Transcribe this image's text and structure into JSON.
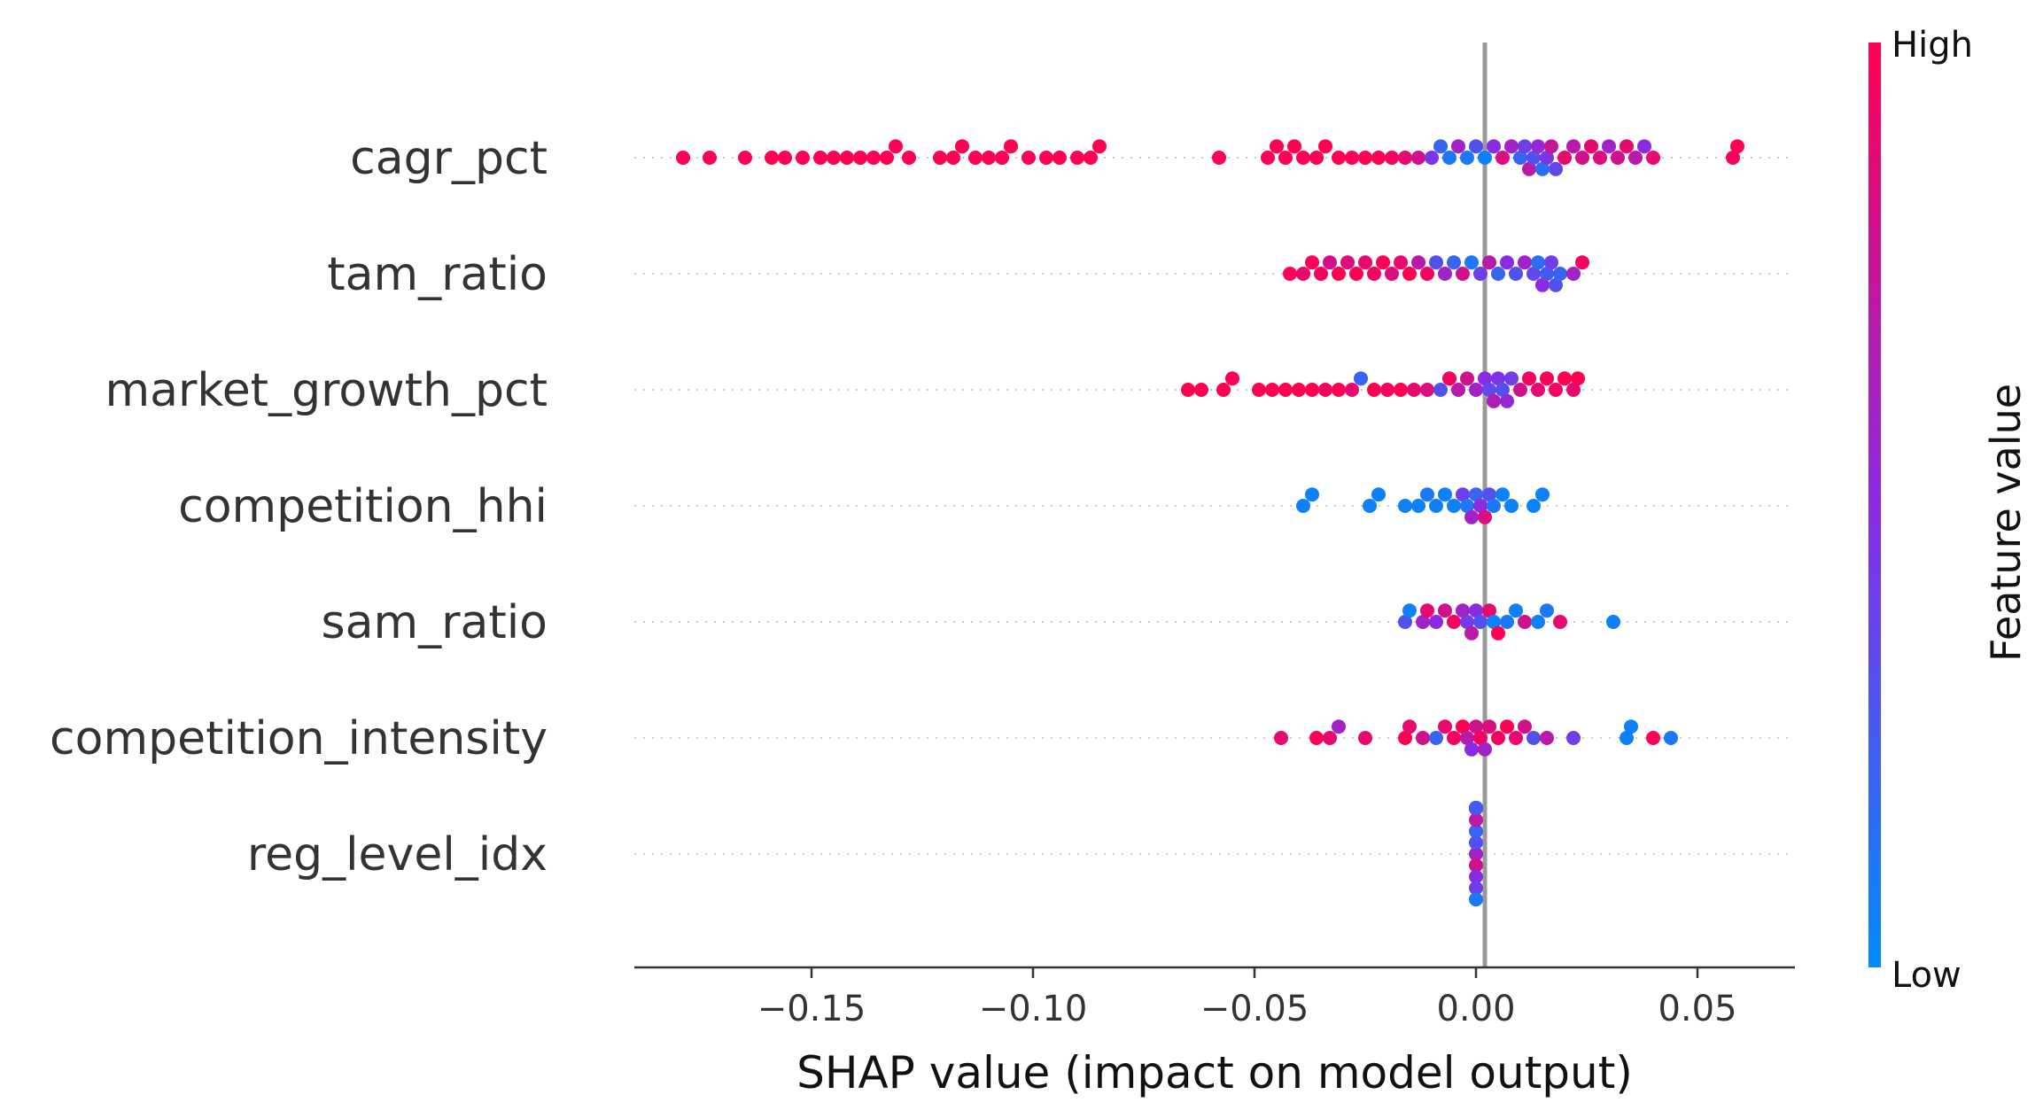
{
  "chart_data": {
    "type": "scatter",
    "subtype": "shap-beeswarm",
    "title": "",
    "xlabel": "SHAP value (impact on model output)",
    "ylabel": "",
    "xlim": [
      -0.19,
      0.072
    ],
    "xticks": [
      -0.15,
      -0.1,
      -0.05,
      0.0,
      0.05
    ],
    "xtick_labels": [
      "−0.15",
      "−0.10",
      "−0.05",
      "0.00",
      "0.05"
    ],
    "zero_line": true,
    "grid": false,
    "colorbar": {
      "title": "Feature value",
      "high_label": "High",
      "low_label": "Low",
      "high_color": "#ff0052",
      "mid_color": "#8a2be2",
      "low_color": "#008bfb"
    },
    "features": [
      {
        "name": "cagr_pct",
        "points": [
          [
            -0.179,
            1.0
          ],
          [
            -0.173,
            1.0
          ],
          [
            -0.165,
            1.0
          ],
          [
            -0.159,
            1.0
          ],
          [
            -0.156,
            1.0
          ],
          [
            -0.152,
            1.0
          ],
          [
            -0.148,
            1.0
          ],
          [
            -0.145,
            1.0
          ],
          [
            -0.142,
            1.0
          ],
          [
            -0.139,
            1.0
          ],
          [
            -0.136,
            1.0
          ],
          [
            -0.133,
            1.0
          ],
          [
            -0.131,
            1.0
          ],
          [
            -0.128,
            1.0
          ],
          [
            -0.121,
            1.0
          ],
          [
            -0.118,
            1.0
          ],
          [
            -0.116,
            1.0
          ],
          [
            -0.113,
            1.0
          ],
          [
            -0.11,
            1.0
          ],
          [
            -0.107,
            1.0
          ],
          [
            -0.105,
            1.0
          ],
          [
            -0.101,
            1.0
          ],
          [
            -0.097,
            1.0
          ],
          [
            -0.094,
            1.0
          ],
          [
            -0.09,
            1.0
          ],
          [
            -0.087,
            1.0
          ],
          [
            -0.085,
            1.0
          ],
          [
            -0.058,
            1.0
          ],
          [
            -0.047,
            1.0
          ],
          [
            -0.045,
            1.0
          ],
          [
            -0.043,
            1.0
          ],
          [
            -0.041,
            1.0
          ],
          [
            -0.039,
            1.0
          ],
          [
            -0.036,
            1.0
          ],
          [
            -0.034,
            1.0
          ],
          [
            -0.031,
            1.0
          ],
          [
            -0.028,
            1.0
          ],
          [
            -0.025,
            1.0
          ],
          [
            -0.022,
            1.0
          ],
          [
            -0.019,
            0.95
          ],
          [
            -0.016,
            0.9
          ],
          [
            -0.013,
            0.8
          ],
          [
            -0.01,
            0.45
          ],
          [
            -0.008,
            0.2
          ],
          [
            -0.006,
            0.1
          ],
          [
            -0.004,
            0.6
          ],
          [
            -0.002,
            0.1
          ],
          [
            0.0,
            0.3
          ],
          [
            0.002,
            0.05
          ],
          [
            0.004,
            0.5
          ],
          [
            0.006,
            0.85
          ],
          [
            0.008,
            0.6
          ],
          [
            0.01,
            0.2
          ],
          [
            0.011,
            0.4
          ],
          [
            0.012,
            0.7
          ],
          [
            0.013,
            0.3
          ],
          [
            0.014,
            0.55
          ],
          [
            0.015,
            0.15
          ],
          [
            0.016,
            0.45
          ],
          [
            0.017,
            0.75
          ],
          [
            0.018,
            0.35
          ],
          [
            0.02,
            0.9
          ],
          [
            0.022,
            0.7
          ],
          [
            0.024,
            0.8
          ],
          [
            0.026,
            0.9
          ],
          [
            0.028,
            0.85
          ],
          [
            0.03,
            0.6
          ],
          [
            0.032,
            0.8
          ],
          [
            0.034,
            0.9
          ],
          [
            0.036,
            0.7
          ],
          [
            0.038,
            0.5
          ],
          [
            0.04,
            0.9
          ],
          [
            0.058,
            0.95
          ],
          [
            0.059,
            1.0
          ]
        ]
      },
      {
        "name": "tam_ratio",
        "points": [
          [
            -0.042,
            1.0
          ],
          [
            -0.039,
            0.9
          ],
          [
            -0.037,
            1.0
          ],
          [
            -0.035,
            0.95
          ],
          [
            -0.033,
            0.8
          ],
          [
            -0.031,
            1.0
          ],
          [
            -0.029,
            0.85
          ],
          [
            -0.027,
            1.0
          ],
          [
            -0.025,
            0.9
          ],
          [
            -0.023,
            0.95
          ],
          [
            -0.021,
            1.0
          ],
          [
            -0.019,
            0.85
          ],
          [
            -0.017,
            0.9
          ],
          [
            -0.015,
            1.0
          ],
          [
            -0.013,
            0.7
          ],
          [
            -0.011,
            0.95
          ],
          [
            -0.009,
            0.3
          ],
          [
            -0.007,
            0.6
          ],
          [
            -0.005,
            0.2
          ],
          [
            -0.003,
            0.8
          ],
          [
            -0.001,
            0.1
          ],
          [
            0.001,
            0.4
          ],
          [
            0.003,
            0.7
          ],
          [
            0.005,
            0.2
          ],
          [
            0.007,
            0.5
          ],
          [
            0.009,
            0.3
          ],
          [
            0.011,
            0.6
          ],
          [
            0.013,
            0.35
          ],
          [
            0.014,
            0.15
          ],
          [
            0.015,
            0.5
          ],
          [
            0.016,
            0.25
          ],
          [
            0.017,
            0.4
          ],
          [
            0.018,
            0.3
          ],
          [
            0.019,
            0.2
          ],
          [
            0.022,
            0.6
          ],
          [
            0.024,
            0.95
          ]
        ]
      },
      {
        "name": "market_growth_pct",
        "points": [
          [
            -0.065,
            1.0
          ],
          [
            -0.062,
            1.0
          ],
          [
            -0.057,
            1.0
          ],
          [
            -0.055,
            1.0
          ],
          [
            -0.049,
            1.0
          ],
          [
            -0.046,
            1.0
          ],
          [
            -0.043,
            1.0
          ],
          [
            -0.04,
            1.0
          ],
          [
            -0.037,
            1.0
          ],
          [
            -0.034,
            0.95
          ],
          [
            -0.031,
            1.0
          ],
          [
            -0.028,
            0.9
          ],
          [
            -0.026,
            0.2
          ],
          [
            -0.023,
            1.0
          ],
          [
            -0.02,
            0.95
          ],
          [
            -0.017,
            1.0
          ],
          [
            -0.014,
            0.9
          ],
          [
            -0.011,
            0.85
          ],
          [
            -0.008,
            0.3
          ],
          [
            -0.006,
            0.95
          ],
          [
            -0.004,
            0.7
          ],
          [
            -0.002,
            0.8
          ],
          [
            0.0,
            0.6
          ],
          [
            0.002,
            0.5
          ],
          [
            0.003,
            0.35
          ],
          [
            0.004,
            0.65
          ],
          [
            0.005,
            0.45
          ],
          [
            0.006,
            0.3
          ],
          [
            0.007,
            0.55
          ],
          [
            0.008,
            0.4
          ],
          [
            0.01,
            0.8
          ],
          [
            0.012,
            0.95
          ],
          [
            0.014,
            0.9
          ],
          [
            0.016,
            1.0
          ],
          [
            0.018,
            0.95
          ],
          [
            0.02,
            1.0
          ],
          [
            0.022,
            0.9
          ],
          [
            0.023,
            1.0
          ]
        ]
      },
      {
        "name": "competition_hhi",
        "points": [
          [
            -0.039,
            0.05
          ],
          [
            -0.037,
            0.05
          ],
          [
            -0.024,
            0.05
          ],
          [
            -0.022,
            0.05
          ],
          [
            -0.016,
            0.05
          ],
          [
            -0.013,
            0.05
          ],
          [
            -0.011,
            0.1
          ],
          [
            -0.009,
            0.05
          ],
          [
            -0.007,
            0.05
          ],
          [
            -0.005,
            0.05
          ],
          [
            -0.003,
            0.4
          ],
          [
            -0.002,
            0.1
          ],
          [
            -0.001,
            0.6
          ],
          [
            0.0,
            0.2
          ],
          [
            0.001,
            0.5
          ],
          [
            0.002,
            0.85
          ],
          [
            0.003,
            0.3
          ],
          [
            0.004,
            0.1
          ],
          [
            0.006,
            0.05
          ],
          [
            0.008,
            0.05
          ],
          [
            0.013,
            0.05
          ],
          [
            0.015,
            0.05
          ]
        ]
      },
      {
        "name": "sam_ratio",
        "points": [
          [
            -0.016,
            0.3
          ],
          [
            -0.015,
            0.05
          ],
          [
            -0.012,
            0.6
          ],
          [
            -0.011,
            0.9
          ],
          [
            -0.009,
            0.5
          ],
          [
            -0.007,
            0.8
          ],
          [
            -0.005,
            0.95
          ],
          [
            -0.003,
            0.6
          ],
          [
            -0.002,
            0.4
          ],
          [
            -0.001,
            0.7
          ],
          [
            0.0,
            0.5
          ],
          [
            0.001,
            0.3
          ],
          [
            0.003,
            0.9
          ],
          [
            0.004,
            0.05
          ],
          [
            0.005,
            1.0
          ],
          [
            0.007,
            0.1
          ],
          [
            0.009,
            0.05
          ],
          [
            0.011,
            0.8
          ],
          [
            0.014,
            0.05
          ],
          [
            0.016,
            0.1
          ],
          [
            0.019,
            0.9
          ],
          [
            0.031,
            0.05
          ]
        ]
      },
      {
        "name": "competition_intensity",
        "points": [
          [
            -0.044,
            0.9
          ],
          [
            -0.036,
            1.0
          ],
          [
            -0.033,
            0.9
          ],
          [
            -0.031,
            0.6
          ],
          [
            -0.025,
            0.9
          ],
          [
            -0.016,
            1.0
          ],
          [
            -0.015,
            0.9
          ],
          [
            -0.012,
            0.8
          ],
          [
            -0.009,
            0.2
          ],
          [
            -0.007,
            0.9
          ],
          [
            -0.005,
            0.95
          ],
          [
            -0.003,
            1.0
          ],
          [
            -0.002,
            0.7
          ],
          [
            -0.001,
            0.5
          ],
          [
            0.0,
            0.8
          ],
          [
            0.001,
            0.95
          ],
          [
            0.002,
            0.6
          ],
          [
            0.003,
            0.85
          ],
          [
            0.005,
            0.95
          ],
          [
            0.007,
            1.0
          ],
          [
            0.009,
            0.9
          ],
          [
            0.011,
            0.8
          ],
          [
            0.013,
            0.3
          ],
          [
            0.016,
            0.7
          ],
          [
            0.022,
            0.4
          ],
          [
            0.034,
            0.05
          ],
          [
            0.035,
            0.05
          ],
          [
            0.04,
            1.0
          ],
          [
            0.044,
            0.1
          ]
        ]
      },
      {
        "name": "reg_level_idx",
        "points": [
          [
            0.0,
            0.6
          ],
          [
            0.0,
            0.3
          ],
          [
            0.0,
            0.8
          ],
          [
            0.0,
            0.2
          ],
          [
            0.0,
            0.5
          ],
          [
            0.0,
            0.7
          ],
          [
            0.0,
            0.4
          ],
          [
            0.0,
            0.9
          ],
          [
            0.0,
            0.1
          ],
          [
            0.0,
            0.55
          ],
          [
            0.0,
            0.35
          ],
          [
            0.0,
            0.65
          ],
          [
            0.0,
            0.45
          ],
          [
            0.0,
            0.25
          ]
        ]
      }
    ]
  }
}
